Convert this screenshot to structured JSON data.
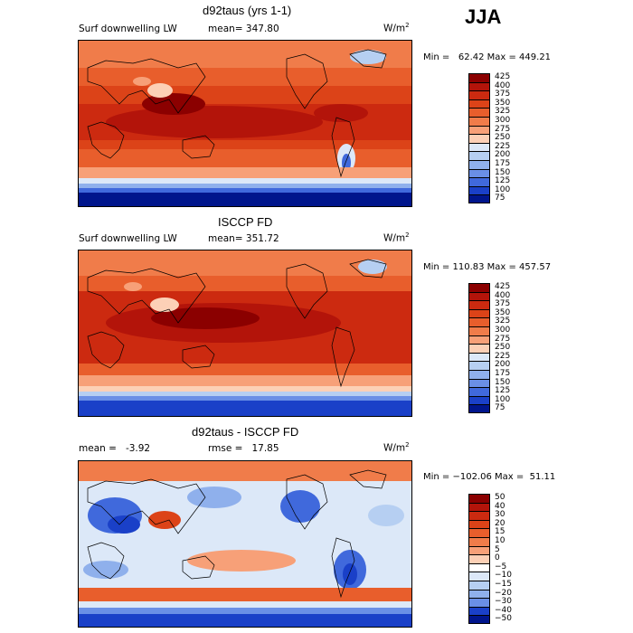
{
  "season": "JJA",
  "chart_data": [
    {
      "type": "heatmap",
      "title": "d92taus (yrs 1-1)",
      "left_label": "Surf downwelling LW",
      "mean_label": "mean=",
      "mean": "347.80",
      "units": "W/m",
      "units_sup": "2",
      "min_max": "Min =   62.42 Max = 449.21",
      "levels": [
        "425",
        "400",
        "375",
        "350",
        "325",
        "300",
        "275",
        "250",
        "225",
        "200",
        "175",
        "150",
        "125",
        "100",
        "75"
      ],
      "colors": [
        "#8b0000",
        "#b3140a",
        "#cc2a10",
        "#dc4318",
        "#e85e2c",
        "#f07c4a",
        "#f7a078",
        "#fcd0b6",
        "#dce8f8",
        "#b6cff2",
        "#8fb0ec",
        "#6a8fe6",
        "#4069dc",
        "#1a40c8",
        "#00158c"
      ]
    },
    {
      "type": "heatmap",
      "title": "ISCCP FD",
      "left_label": "Surf downwelling LW",
      "mean_label": "mean=",
      "mean": "351.72",
      "units": "W/m",
      "units_sup": "2",
      "min_max": "Min = 110.83 Max = 457.57",
      "levels": [
        "425",
        "400",
        "375",
        "350",
        "325",
        "300",
        "275",
        "250",
        "225",
        "200",
        "175",
        "150",
        "125",
        "100",
        "75"
      ],
      "colors": [
        "#8b0000",
        "#b3140a",
        "#cc2a10",
        "#dc4318",
        "#e85e2c",
        "#f07c4a",
        "#f7a078",
        "#fcd0b6",
        "#dce8f8",
        "#b6cff2",
        "#8fb0ec",
        "#6a8fe6",
        "#4069dc",
        "#1a40c8",
        "#00158c"
      ]
    },
    {
      "type": "heatmap",
      "title": "d92taus - ISCCP FD",
      "left_label": "mean =",
      "mean": "-3.92",
      "rmse_label": "rmse =",
      "rmse": "17.85",
      "units": "W/m",
      "units_sup": "2",
      "min_max": "Min = −102.06 Max =  51.11",
      "levels": [
        "50",
        "40",
        "30",
        "20",
        "15",
        "10",
        "5",
        "0",
        "−5",
        "−10",
        "−15",
        "−20",
        "−30",
        "−40",
        "−50"
      ],
      "colors": [
        "#8b0000",
        "#b3140a",
        "#cc2a10",
        "#dc4318",
        "#e85e2c",
        "#f07c4a",
        "#f7a078",
        "#fcd0b6",
        "#ffffff",
        "#dce8f8",
        "#b6cff2",
        "#8fb0ec",
        "#6a8fe6",
        "#1a40c8",
        "#00158c"
      ]
    }
  ]
}
